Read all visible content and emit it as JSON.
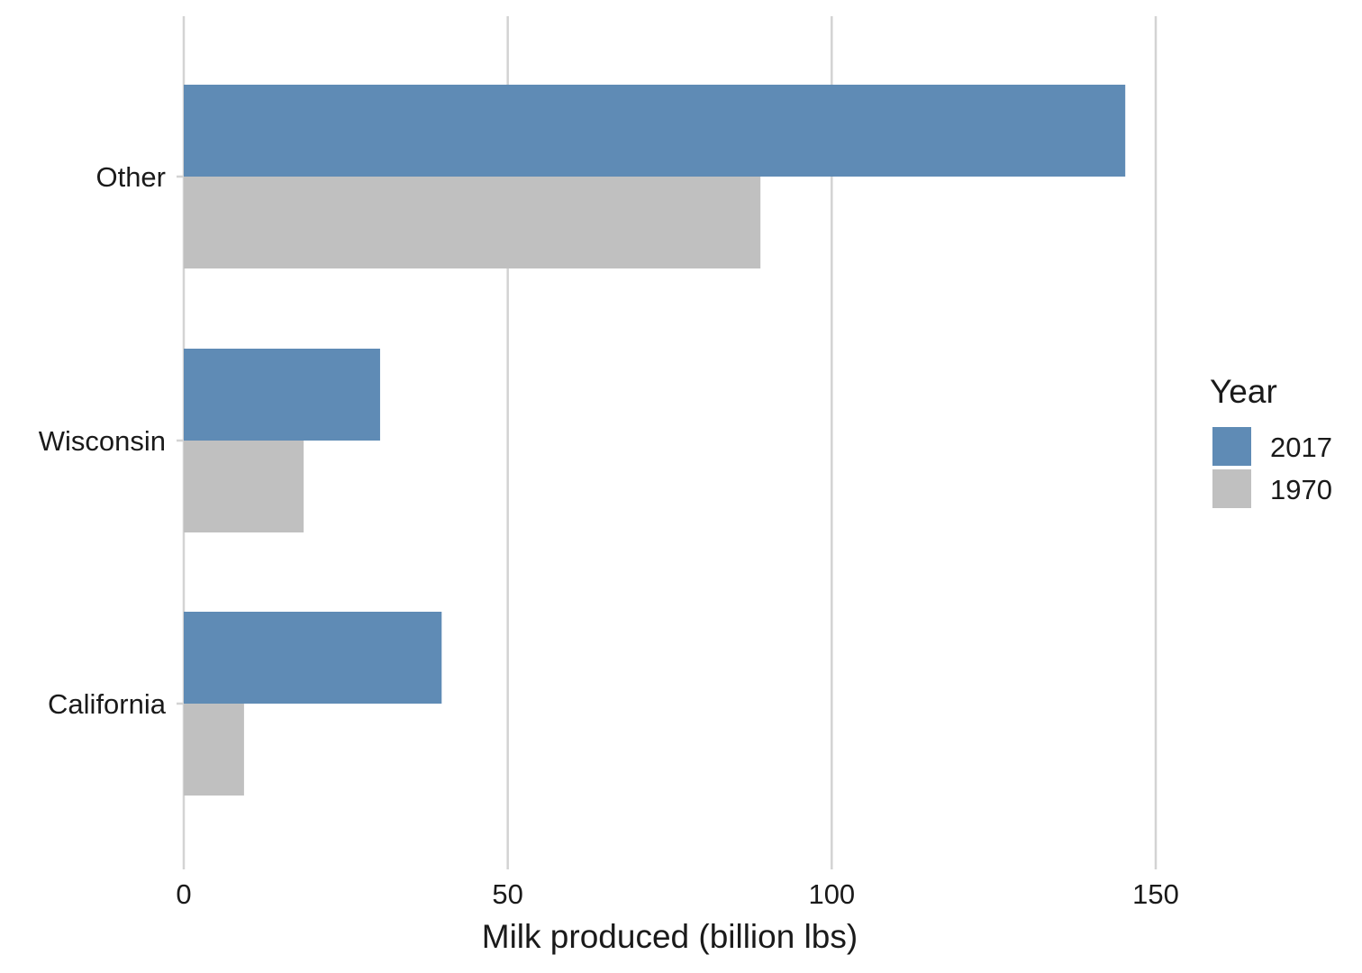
{
  "chart_data": {
    "type": "bar",
    "orientation": "horizontal",
    "categories": [
      "Other",
      "Wisconsin",
      "California"
    ],
    "series": [
      {
        "name": "2017",
        "values": [
          145.3,
          30.3,
          39.8
        ],
        "color": "#5f8bb5"
      },
      {
        "name": "1970",
        "values": [
          89.0,
          18.5,
          9.3
        ],
        "color": "#c0c0c0"
      }
    ],
    "xlabel": "Milk produced (billion lbs)",
    "ylabel": "",
    "xlim": [
      0,
      150
    ],
    "xticks": [
      0,
      50,
      100,
      150
    ],
    "grid": "vertical major gridlines",
    "legend": {
      "title": "Year",
      "position": "right"
    }
  }
}
